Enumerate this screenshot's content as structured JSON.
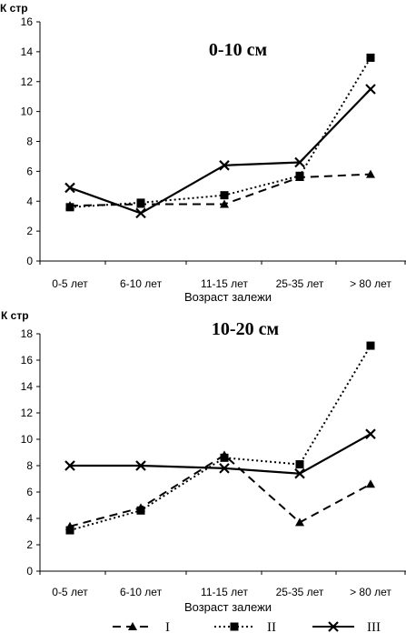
{
  "chart_data": [
    {
      "type": "line",
      "title": "0-10 см",
      "ylabel": "К стр",
      "xlabel": "Возраст залежи",
      "categories": [
        "0-5 лет",
        "6-10 лет",
        "11-15 лет",
        "25-35 лет",
        "> 80 лет"
      ],
      "ylim": [
        0,
        16
      ],
      "yticks": [
        0,
        2,
        4,
        6,
        8,
        10,
        12,
        14,
        16
      ],
      "series": [
        {
          "name": "I",
          "values": [
            3.7,
            3.8,
            3.8,
            5.6,
            5.8
          ]
        },
        {
          "name": "II",
          "values": [
            3.6,
            3.9,
            4.4,
            5.7,
            13.6
          ]
        },
        {
          "name": "III",
          "values": [
            4.9,
            3.2,
            6.4,
            6.6,
            11.5
          ]
        }
      ]
    },
    {
      "type": "line",
      "title": "10-20 см",
      "ylabel": "К стр",
      "xlabel": "Возраст залежи",
      "categories": [
        "0-5 лет",
        "6-10 лет",
        "11-15 лет",
        "25-35 лет",
        "> 80 лет"
      ],
      "ylim": [
        0,
        18
      ],
      "yticks": [
        0,
        2,
        4,
        6,
        8,
        10,
        12,
        14,
        16,
        18
      ],
      "series": [
        {
          "name": "I",
          "values": [
            3.4,
            4.8,
            8.8,
            3.7,
            6.6
          ]
        },
        {
          "name": "II",
          "values": [
            3.1,
            4.6,
            8.6,
            8.1,
            17.1
          ]
        },
        {
          "name": "III",
          "values": [
            8.0,
            8.0,
            7.8,
            7.4,
            10.4
          ]
        }
      ]
    }
  ],
  "legend": {
    "position": "bottom",
    "items": [
      "I",
      "II",
      "III"
    ]
  },
  "styles": {
    "I": {
      "dash": "9,6",
      "marker": "triangle"
    },
    "II": {
      "dash": "2,3",
      "marker": "square"
    },
    "III": {
      "dash": "",
      "marker": "x"
    }
  }
}
